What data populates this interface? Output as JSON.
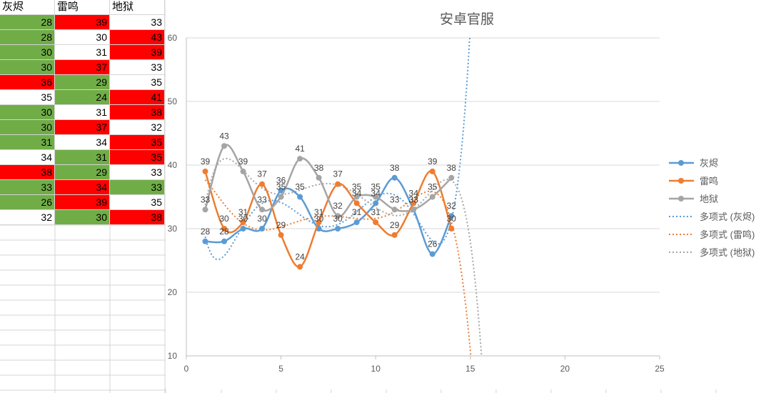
{
  "sheet": {
    "headers": [
      "灰烬",
      "雷鸣",
      "地狱"
    ],
    "rows": [
      [
        28,
        39,
        33
      ],
      [
        28,
        30,
        43
      ],
      [
        30,
        31,
        39
      ],
      [
        30,
        37,
        33
      ],
      [
        36,
        29,
        35
      ],
      [
        35,
        24,
        41
      ],
      [
        30,
        31,
        38
      ],
      [
        30,
        37,
        32
      ],
      [
        31,
        34,
        35
      ],
      [
        34,
        31,
        35
      ],
      [
        38,
        29,
        33
      ],
      [
        33,
        34,
        33
      ],
      [
        26,
        39,
        35
      ],
      [
        32,
        30,
        38
      ]
    ],
    "fills": [
      [
        "#70ad47",
        "#ff0000",
        "#ffffff"
      ],
      [
        "#70ad47",
        "#ffffff",
        "#ff0000"
      ],
      [
        "#70ad47",
        "#ffffff",
        "#ff0000"
      ],
      [
        "#70ad47",
        "#ff0000",
        "#ffffff"
      ],
      [
        "#ff0000",
        "#70ad47",
        "#ffffff"
      ],
      [
        "#ffffff",
        "#70ad47",
        "#ff0000"
      ],
      [
        "#70ad47",
        "#ffffff",
        "#ff0000"
      ],
      [
        "#70ad47",
        "#ff0000",
        "#ffffff"
      ],
      [
        "#70ad47",
        "#ffffff",
        "#ff0000"
      ],
      [
        "#ffffff",
        "#70ad47",
        "#ff0000"
      ],
      [
        "#ff0000",
        "#70ad47",
        "#ffffff"
      ],
      [
        "#70ad47",
        "#ff0000",
        "#70ad47"
      ],
      [
        "#70ad47",
        "#ff0000",
        "#ffffff"
      ],
      [
        "#ffffff",
        "#70ad47",
        "#ff0000"
      ]
    ]
  },
  "chart_data": {
    "type": "line",
    "title": "安卓官服",
    "xlim": [
      0,
      25
    ],
    "ylim": [
      10,
      60
    ],
    "xticks": [
      0,
      5,
      10,
      15,
      20,
      25
    ],
    "yticks": [
      10,
      20,
      30,
      40,
      50,
      60
    ],
    "grid": "horizontal",
    "legend_position": "right",
    "x": [
      1,
      2,
      3,
      4,
      5,
      6,
      7,
      8,
      9,
      10,
      11,
      12,
      13,
      14
    ],
    "series": [
      {
        "name": "灰烬",
        "color": "#5b9bd5",
        "values": [
          28,
          28,
          30,
          30,
          36,
          35,
          30,
          30,
          31,
          34,
          38,
          33,
          26,
          32
        ]
      },
      {
        "name": "雷鸣",
        "color": "#ed7d31",
        "values": [
          39,
          30,
          31,
          37,
          29,
          24,
          31,
          37,
          34,
          31,
          29,
          34,
          39,
          30
        ]
      },
      {
        "name": "地狱",
        "color": "#a5a5a5",
        "values": [
          33,
          43,
          39,
          33,
          35,
          41,
          38,
          32,
          35,
          35,
          33,
          33,
          35,
          38
        ]
      }
    ],
    "trendlines": [
      {
        "name": "多项式 (灰烬)",
        "color": "#5b9bd5",
        "type": "polynomial"
      },
      {
        "name": "多项式 (雷鸣)",
        "color": "#ed7d31",
        "type": "polynomial"
      },
      {
        "name": "多项式 (地狱)",
        "color": "#a5a5a5",
        "type": "polynomial"
      }
    ]
  }
}
